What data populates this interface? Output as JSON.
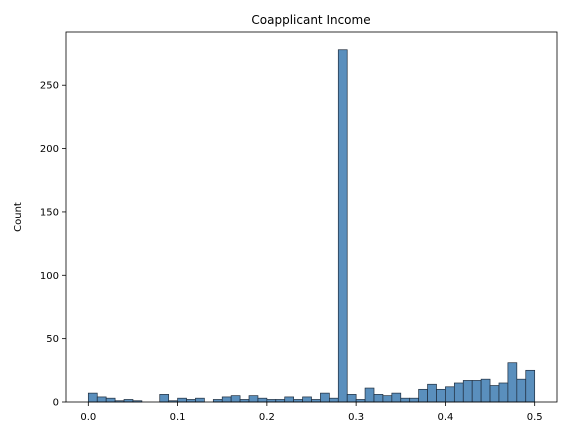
{
  "chart_data": {
    "type": "bar",
    "title": "Coapplicant Income",
    "xlabel": "",
    "ylabel": "Count",
    "xlim": [
      -0.025,
      0.525
    ],
    "ylim": [
      0,
      292
    ],
    "grid": false,
    "colors": {
      "bar_fill": "#5a8fbd",
      "bar_edge": "#1f2d3d",
      "axes": "#000000"
    },
    "x_ticks": [
      0.0,
      0.1,
      0.2,
      0.3,
      0.4,
      0.5
    ],
    "x_tick_labels": [
      "0.0",
      "0.1",
      "0.2",
      "0.3",
      "0.4",
      "0.5"
    ],
    "y_ticks": [
      0,
      50,
      100,
      150,
      200,
      250
    ],
    "y_tick_labels": [
      "0",
      "50",
      "100",
      "150",
      "200",
      "250"
    ],
    "bins": {
      "start": 0.0,
      "width": 0.01,
      "counts": [
        7,
        4,
        3,
        1,
        2,
        1,
        0,
        0,
        6,
        1,
        3,
        2,
        3,
        0,
        2,
        4,
        5,
        2,
        5,
        3,
        2,
        2,
        4,
        2,
        4,
        2,
        7,
        3,
        278,
        6,
        2,
        11,
        6,
        5,
        7,
        3,
        3,
        10,
        14,
        10,
        12,
        15,
        17,
        17,
        18,
        13,
        15,
        31,
        18,
        25
      ]
    }
  }
}
